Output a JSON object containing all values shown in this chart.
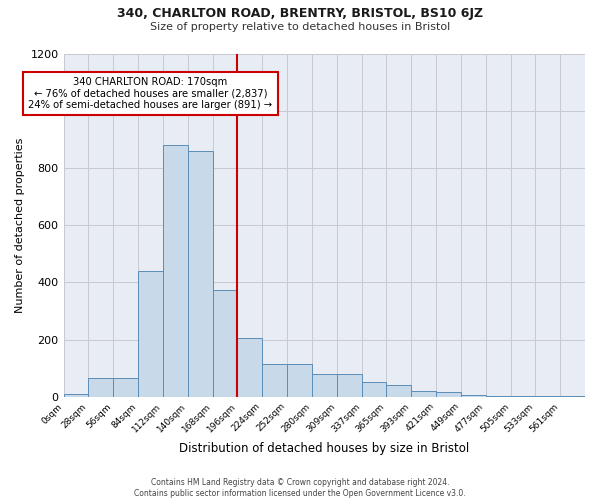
{
  "title_line1": "340, CHARLTON ROAD, BRENTRY, BRISTOL, BS10 6JZ",
  "title_line2": "Size of property relative to detached houses in Bristol",
  "xlabel": "Distribution of detached houses by size in Bristol",
  "ylabel": "Number of detached properties",
  "bar_labels": [
    "0sqm",
    "28sqm",
    "56sqm",
    "84sqm",
    "112sqm",
    "140sqm",
    "168sqm",
    "196sqm",
    "224sqm",
    "252sqm",
    "280sqm",
    "309sqm",
    "337sqm",
    "365sqm",
    "393sqm",
    "421sqm",
    "449sqm",
    "477sqm",
    "505sqm",
    "533sqm",
    "561sqm"
  ],
  "bar_values": [
    10,
    65,
    65,
    440,
    880,
    860,
    375,
    205,
    115,
    115,
    80,
    80,
    50,
    40,
    20,
    15,
    5,
    2,
    2,
    1,
    1
  ],
  "bar_color": "#c8d9ea",
  "bar_edge_color": "#5b8db8",
  "vline_x": 7,
  "vline_color": "#cc0000",
  "annotation_text": "340 CHARLTON ROAD: 170sqm\n← 76% of detached houses are smaller (2,837)\n24% of semi-detached houses are larger (891) →",
  "annotation_box_color": "#ffffff",
  "annotation_box_edge": "#cc0000",
  "ylim": [
    0,
    1200
  ],
  "yticks": [
    0,
    200,
    400,
    600,
    800,
    1000,
    1200
  ],
  "grid_color": "#c8c8d0",
  "bg_color": "#e8edf5",
  "footer_line1": "Contains HM Land Registry data © Crown copyright and database right 2024.",
  "footer_line2": "Contains public sector information licensed under the Open Government Licence v3.0."
}
